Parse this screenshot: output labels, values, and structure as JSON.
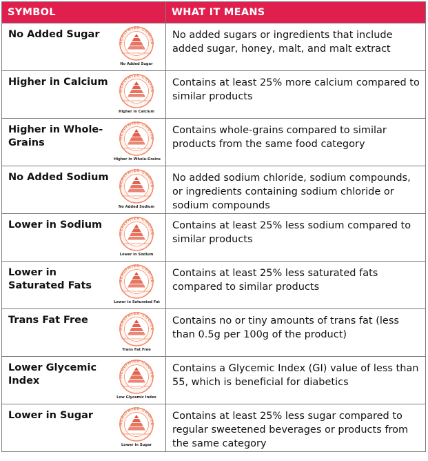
{
  "header": {
    "symbol": "SYMBOL",
    "meaning": "WHAT IT MEANS"
  },
  "colors": {
    "header_bg": "#e01f4f",
    "logo_ring": "#f08a6a",
    "logo_pyramid": "#e0523a"
  },
  "logo": {
    "arc_text": "HEALTHIER CHOICE",
    "sub_text": "Health Promotion Board",
    "icon": "pyramid-icon"
  },
  "rows": [
    {
      "symbol": "No Added Sugar",
      "caption": "No Added Sugar",
      "meaning": "No added sugars or ingredients that include added sugar, honey, malt, and malt extract"
    },
    {
      "symbol": "Higher in Calcium",
      "caption": "Higher in Calcium",
      "meaning": "Contains at least 25% more calcium compared to similar products"
    },
    {
      "symbol": "Higher in Whole-Grains",
      "caption": "Higher in Whole-Grains",
      "meaning": "Contains whole-grains compared to similar products from the same food category"
    },
    {
      "symbol": "No Added Sodium",
      "caption": "No Added Sodium",
      "meaning": "No added sodium chloride, sodium compounds, or ingredients containing sodium chloride or sodium compounds"
    },
    {
      "symbol": "Lower in Sodium",
      "caption": "Lower in Sodium",
      "meaning": "Contains at least 25% less sodium compared to similar products"
    },
    {
      "symbol": "Lower in Saturated Fats",
      "caption": "Lower in Saturated Fat",
      "meaning": "Contains at least 25% less saturated fats compared to similar products"
    },
    {
      "symbol": "Trans Fat Free",
      "caption": "Trans Fat Free",
      "meaning": "Contains no or tiny amounts of trans fat (less than 0.5g per 100g of the product)"
    },
    {
      "symbol": "Lower Glycemic Index",
      "caption": "Low Glycemic Index",
      "meaning": "Contains a Glycemic Index (GI) value of less than 55, which is beneficial for diabetics"
    },
    {
      "symbol": "Lower in Sugar",
      "caption": "Lower in Sugar",
      "meaning": "Contains at least 25% less sugar compared to regular sweetened beverages or products from the same category"
    }
  ]
}
